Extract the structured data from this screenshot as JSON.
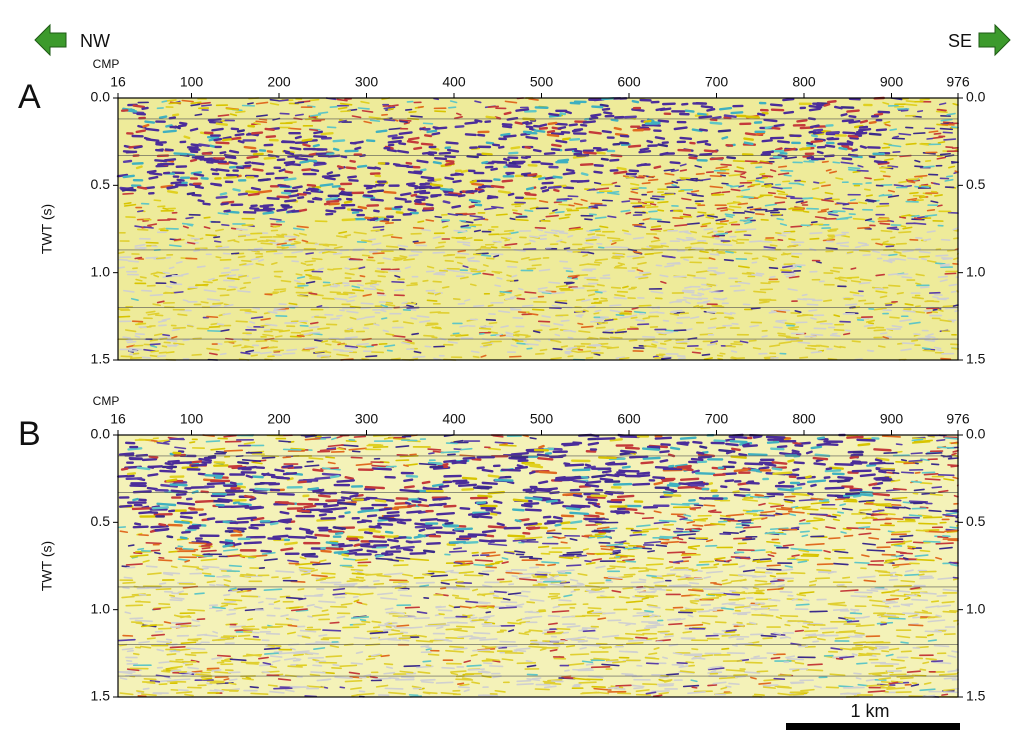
{
  "annotations": {
    "left_direction": "NW",
    "right_direction": "SE",
    "scale_bar": "1 km"
  },
  "chart_data": [
    {
      "type": "seismic",
      "panel_label": "A",
      "xlabel": "CMP",
      "ylabel": "TWT (s)",
      "xlim": [
        16,
        976
      ],
      "xticks": [
        16,
        100,
        200,
        300,
        400,
        500,
        600,
        700,
        800,
        900,
        976
      ],
      "ylim": [
        0,
        1.5
      ],
      "y_inverted": true,
      "yticks": [
        {
          "value": 0,
          "label": "0.0"
        },
        0.5,
        {
          "value": 1,
          "label": "1.0"
        },
        1.5
      ]
    },
    {
      "type": "seismic",
      "panel_label": "B",
      "xlabel": "CMP",
      "ylabel": "TWT (s)",
      "xlim": [
        16,
        976
      ],
      "xticks": [
        16,
        100,
        200,
        300,
        400,
        500,
        600,
        700,
        800,
        900,
        976
      ],
      "ylim": [
        0,
        1.5
      ],
      "y_inverted": true,
      "yticks": [
        {
          "value": 0,
          "label": "0.0"
        },
        0.5,
        {
          "value": 1,
          "label": "1.0"
        },
        1.5
      ]
    }
  ]
}
